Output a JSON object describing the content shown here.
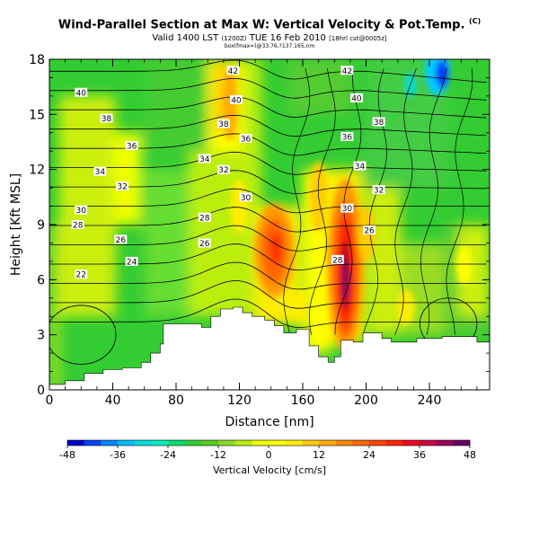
{
  "title": "Wind-Parallel Section at Max W: Vertical Velocity & Pot.Temp.",
  "title_mark": "(C)",
  "subtitle": "Valid 1400 LST",
  "subtitle_small1": "(1200Z)",
  "subtitle_date": "TUE 16 Feb 2010",
  "subtitle_small2": "[18hrl cst@0005z]",
  "subsubtitle": "box(fmax=)@33.76,?137.165,nm",
  "chart_data": {
    "type": "heatmap",
    "xlabel": "Distance [nm]",
    "ylabel": "Height [Kft MSL]",
    "xlim": [
      0,
      278
    ],
    "ylim": [
      0,
      18
    ],
    "xticks": [
      "0",
      "40",
      "80",
      "120",
      "160",
      "200",
      "240"
    ],
    "yticks": [
      "0",
      "3",
      "6",
      "9",
      "12",
      "15",
      "18"
    ],
    "colorbar": {
      "label": "Vertical Velocity [cm/s]",
      "ticks": [
        "-48",
        "-36",
        "-24",
        "-12",
        "0",
        "12",
        "24",
        "36",
        "48"
      ],
      "range": [
        -48,
        48
      ]
    },
    "isentrope_labels": [
      {
        "text": "40",
        "x": 20,
        "y": 16.2
      },
      {
        "text": "38",
        "x": 36,
        "y": 14.8
      },
      {
        "text": "36",
        "x": 52,
        "y": 13.3
      },
      {
        "text": "34",
        "x": 32,
        "y": 11.9
      },
      {
        "text": "32",
        "x": 46,
        "y": 11.1
      },
      {
        "text": "30",
        "x": 20,
        "y": 9.8
      },
      {
        "text": "28",
        "x": 18,
        "y": 9.0
      },
      {
        "text": "26",
        "x": 45,
        "y": 8.2
      },
      {
        "text": "24",
        "x": 52,
        "y": 7.0
      },
      {
        "text": "22",
        "x": 20,
        "y": 6.3
      },
      {
        "text": "42",
        "x": 116,
        "y": 17.4
      },
      {
        "text": "40",
        "x": 118,
        "y": 15.8
      },
      {
        "text": "38",
        "x": 110,
        "y": 14.5
      },
      {
        "text": "36",
        "x": 124,
        "y": 13.7
      },
      {
        "text": "34",
        "x": 98,
        "y": 12.6
      },
      {
        "text": "32",
        "x": 110,
        "y": 12.0
      },
      {
        "text": "30",
        "x": 124,
        "y": 10.5
      },
      {
        "text": "28",
        "x": 98,
        "y": 9.4
      },
      {
        "text": "26",
        "x": 98,
        "y": 8.0
      },
      {
        "text": "42",
        "x": 188,
        "y": 17.4
      },
      {
        "text": "40",
        "x": 194,
        "y": 15.9
      },
      {
        "text": "38",
        "x": 208,
        "y": 14.6
      },
      {
        "text": "36",
        "x": 188,
        "y": 13.8
      },
      {
        "text": "34",
        "x": 196,
        "y": 12.2
      },
      {
        "text": "32",
        "x": 208,
        "y": 10.9
      },
      {
        "text": "30",
        "x": 188,
        "y": 9.9
      },
      {
        "text": "28",
        "x": 182,
        "y": 7.1
      },
      {
        "text": "26",
        "x": 202,
        "y": 8.7
      }
    ],
    "terrain_profile": [
      [
        0,
        0.3
      ],
      [
        10,
        0.5
      ],
      [
        22,
        0.9
      ],
      [
        34,
        1.1
      ],
      [
        46,
        1.2
      ],
      [
        58,
        1.5
      ],
      [
        64,
        2.0
      ],
      [
        70,
        2.5
      ],
      [
        72,
        3.6
      ],
      [
        90,
        3.6
      ],
      [
        96,
        3.4
      ],
      [
        102,
        4.0
      ],
      [
        108,
        4.4
      ],
      [
        116,
        4.5
      ],
      [
        122,
        4.2
      ],
      [
        128,
        4.0
      ],
      [
        136,
        3.8
      ],
      [
        142,
        3.5
      ],
      [
        148,
        3.1
      ],
      [
        156,
        3.3
      ],
      [
        164,
        2.4
      ],
      [
        170,
        1.8
      ],
      [
        176,
        1.5
      ],
      [
        180,
        1.8
      ],
      [
        184,
        2.7
      ],
      [
        192,
        2.6
      ],
      [
        198,
        3.1
      ],
      [
        206,
        3.1
      ],
      [
        210,
        2.8
      ],
      [
        216,
        2.6
      ],
      [
        224,
        2.6
      ],
      [
        232,
        2.8
      ],
      [
        248,
        2.9
      ],
      [
        264,
        2.9
      ],
      [
        270,
        2.6
      ],
      [
        278,
        2.6
      ]
    ],
    "updraft_maxima": [
      {
        "x": 187,
        "y": 6.2,
        "value": 52
      },
      {
        "x": 142,
        "y": 7.6,
        "value": 22
      },
      {
        "x": 114,
        "y": 15.0,
        "value": 10
      }
    ],
    "downdraft_maxima": [
      {
        "x": 245,
        "y": 17.2,
        "value": -40
      },
      {
        "x": 230,
        "y": 16.5,
        "value": -22
      }
    ],
    "colors": {
      "green": "#33cc33",
      "yellow": "#ffff00",
      "orange": "#ff9900",
      "red": "#ff2200",
      "purple": "#660066",
      "cyan": "#00ccff",
      "blue": "#0033ff"
    }
  }
}
